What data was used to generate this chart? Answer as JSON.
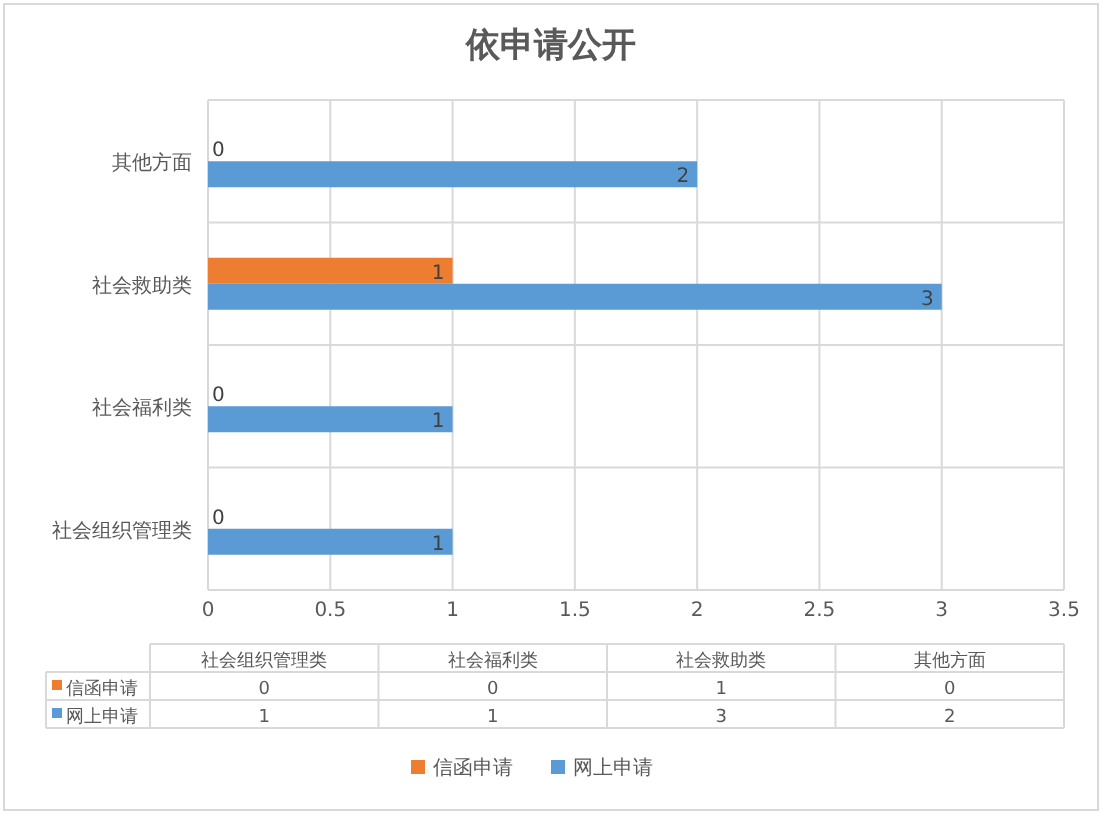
{
  "chart_data": [
    {
      "type": "bar",
      "orientation": "horizontal",
      "title": "依申请公开",
      "categories": [
        "其他方面",
        "社会救助类",
        "社会福利类",
        "社会组织管理类"
      ],
      "series": [
        {
          "name": "信函申请",
          "color": "#ed7d31",
          "values": [
            0,
            1,
            0,
            0
          ]
        },
        {
          "name": "网上申请",
          "color": "#5b9bd5",
          "values": [
            2,
            3,
            1,
            1
          ]
        }
      ],
      "xlim": [
        0,
        3.5
      ],
      "xticks": [
        0,
        0.5,
        1,
        1.5,
        2,
        2.5,
        3,
        3.5
      ],
      "grid": true,
      "data_labels": true,
      "legend": "bottom"
    },
    {
      "type": "other",
      "categories": [
        "社会组织管理类",
        "社会福利类",
        "社会救助类",
        "其他方面"
      ],
      "series": [
        {
          "name": "信函申请",
          "color": "#ed7d31",
          "values": [
            0,
            0,
            1,
            0
          ]
        },
        {
          "name": "网上申请",
          "color": "#5b9bd5",
          "values": [
            1,
            1,
            3,
            2
          ]
        }
      ],
      "data_labels": true
    }
  ]
}
